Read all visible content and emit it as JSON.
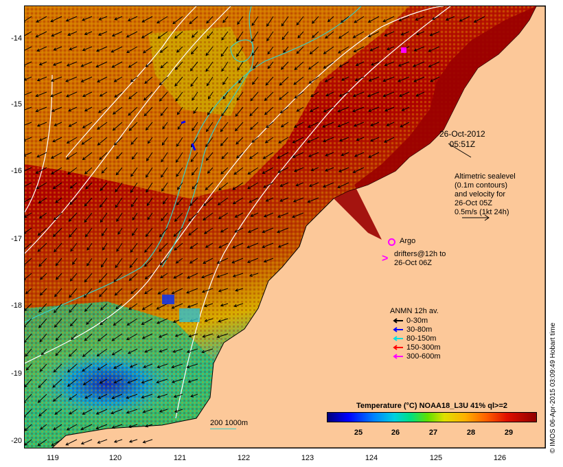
{
  "map": {
    "timestamp_date": "26-Oct-2012",
    "timestamp_time": "05:51Z",
    "altimetry_note": [
      "Altimetric sealevel",
      "(0.1m contours)",
      "and velocity for",
      "26-Oct 05Z",
      "0.5m/s (1kt 24h)"
    ],
    "lat_labels": [
      "-14",
      "-15",
      "-16",
      "-17",
      "-18",
      "-19",
      "-20"
    ],
    "lon_labels": [
      "119",
      "120",
      "121",
      "122",
      "123",
      "124",
      "125",
      "126"
    ],
    "legend": {
      "argo_label": "Argo",
      "drifters_label": [
        "drifters@12h to",
        "26-Oct 06Z"
      ],
      "anmn_title": "ANMN 12h av.",
      "anmn_entries": [
        {
          "label": "0-30m",
          "color": "#000000"
        },
        {
          "label": "30-80m",
          "color": "#0000ff"
        },
        {
          "label": "80-150m",
          "color": "#00e0e0"
        },
        {
          "label": "150-300m",
          "color": "#ff0000"
        },
        {
          "label": "300-600m",
          "color": "#ff00ff"
        }
      ]
    },
    "colorbar": {
      "title": "Temperature (°C) NOAA18_L3U 41% ql>=2",
      "ticks": [
        "25",
        "26",
        "27",
        "28",
        "29"
      ]
    },
    "depth_scale_label": "200  1000m",
    "credit": "© IMOS 06-Apr-2015 03:09:49 Hobart time",
    "colors": {
      "land": "#fcc899",
      "sea_hot": "#a80000",
      "sea_warm": "#e08000",
      "sea_cool": "#2080ff",
      "contour_white": "#ffffff",
      "isobath": "#36d0c8",
      "argo": "#ff00ff"
    }
  }
}
